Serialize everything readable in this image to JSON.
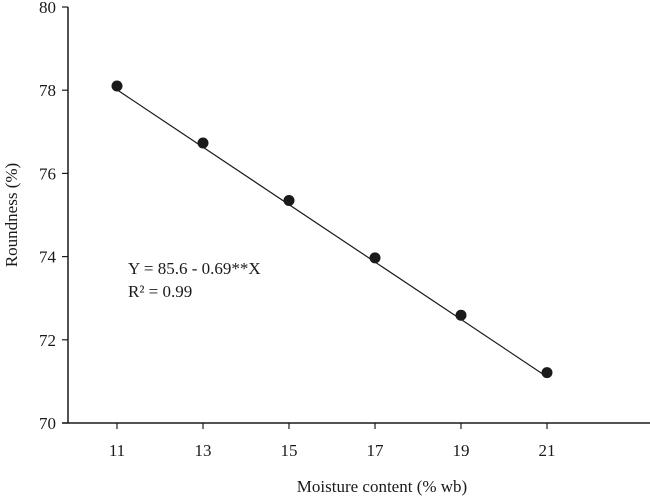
{
  "chart_data": {
    "type": "scatter",
    "title": "",
    "xlabel": "Moisture content (% wb)",
    "ylabel": "Roundness (%)",
    "x": [
      11,
      13,
      15,
      17,
      19,
      21
    ],
    "series": [
      {
        "name": "Roundness",
        "values": [
          78.1,
          76.73,
          75.35,
          73.97,
          72.59,
          71.21
        ],
        "marker": "filled-circle",
        "color": "#1a1a1a"
      }
    ],
    "fit_line": {
      "equation": "Y = 85.6 - 0.69**X",
      "r_squared": "R² = 0.99",
      "intercept": 85.6,
      "slope": -0.69,
      "x_range": [
        11,
        21
      ]
    },
    "xticks": [
      "11",
      "13",
      "15",
      "17",
      "19",
      "21"
    ],
    "yticks": [
      "70",
      "72",
      "74",
      "76",
      "78",
      "80"
    ],
    "xlim": [
      9.85,
      23.1
    ],
    "ylim": [
      70,
      80
    ],
    "grid": false,
    "legend": null
  },
  "annotation": {
    "line1": "Y = 85.6 - 0.69**X",
    "line2": "R² = 0.99"
  },
  "axes": {
    "xlabel": "Moisture content (% wb)",
    "ylabel": "Roundness (%)"
  }
}
